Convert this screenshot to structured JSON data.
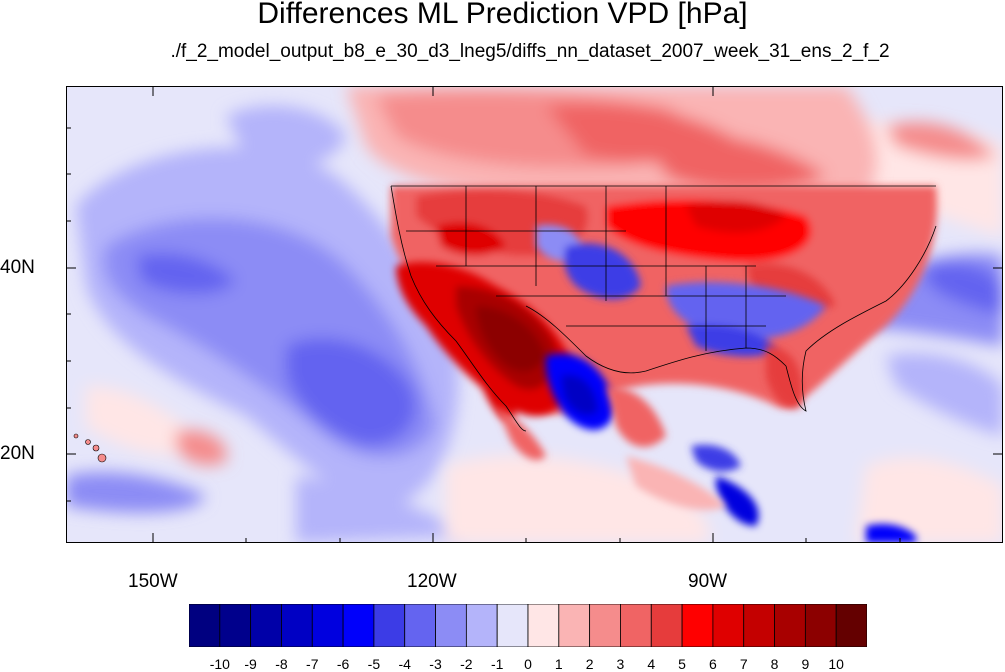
{
  "title": "Differences ML Prediction VPD [hPa]",
  "subtitle": "./f_2_model_output_b8_e_30_d3_lneg5/diffs_nn_dataset_2007_week_31_ens_2_f_2",
  "y_axis_labels": [
    "40N",
    "20N"
  ],
  "x_axis_labels": [
    "150W",
    "120W",
    "90W"
  ],
  "colorbar": {
    "labels": [
      "-10",
      "-9",
      "-8",
      "-7",
      "-6",
      "-5",
      "-4",
      "-3",
      "-2",
      "-1",
      "0",
      "1",
      "2",
      "3",
      "4",
      "5",
      "6",
      "7",
      "8",
      "9",
      "10"
    ],
    "colors": [
      "#000080",
      "#00008c",
      "#0000a8",
      "#0000c4",
      "#0000df",
      "#0000fb",
      "#3c3ce6",
      "#6464f0",
      "#8c8cf5",
      "#b4b4fa",
      "#e6e6fa",
      "#ffe6e6",
      "#fab4b4",
      "#f58c8c",
      "#f06464",
      "#e63c3c",
      "#ff0000",
      "#df0000",
      "#c40000",
      "#a80000",
      "#8c0000",
      "#640000"
    ]
  },
  "colors": {
    "ocean_base": "#e6e6fa",
    "strong_positive": "#8c0000",
    "strong_negative": "#0000df"
  }
}
